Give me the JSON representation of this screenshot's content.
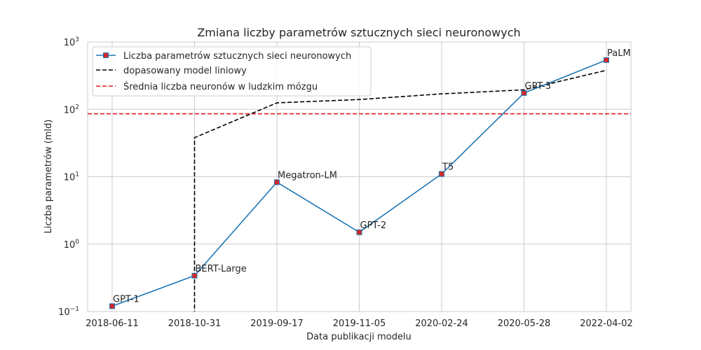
{
  "chart_data": {
    "type": "line",
    "title": "Zmiana liczby parametrów sztucznych sieci neuronowych",
    "xlabel": "Data publikacji modelu",
    "ylabel": "Liczba parametrów (mld)",
    "y_scale": "log",
    "ylim": [
      0.1,
      1000
    ],
    "y_ticks": [
      {
        "value": 0.1,
        "base": "10",
        "exp": "−1"
      },
      {
        "value": 1,
        "base": "10",
        "exp": "0"
      },
      {
        "value": 10,
        "base": "10",
        "exp": "1"
      },
      {
        "value": 100,
        "base": "10",
        "exp": "2"
      },
      {
        "value": 1000,
        "base": "10",
        "exp": "3"
      }
    ],
    "categories": [
      "2018-06-11",
      "2018-10-31",
      "2019-09-17",
      "2019-11-05",
      "2020-02-24",
      "2020-05-28",
      "2022-04-02"
    ],
    "grid": true,
    "legend_position": "top-left",
    "series": [
      {
        "name": "Liczba parametrów sztucznych sieci neuronowych",
        "style": "line-markers",
        "color": "#1f77b4",
        "marker_color": "#d62728",
        "values": [
          0.12,
          0.34,
          8.3,
          1.5,
          11,
          175,
          540
        ],
        "point_labels": [
          "GPT-1",
          "BERT-Large",
          "Megatron-LM",
          "GPT-2",
          "T5",
          "GPT-3",
          "PaLM"
        ]
      },
      {
        "name": "dopasowany model liniowy",
        "style": "dashed",
        "color": "#000000",
        "values": [
          -200,
          38,
          125,
          140,
          170,
          195,
          380
        ]
      },
      {
        "name": "Średnia liczba neuronów w ludzkim mózgu",
        "style": "dashed-hline",
        "color": "#e31a1c",
        "y": 86
      }
    ]
  }
}
